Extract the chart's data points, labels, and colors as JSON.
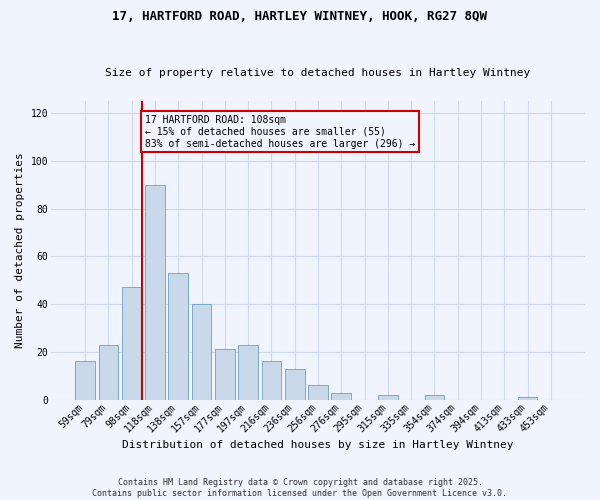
{
  "title_line1": "17, HARTFORD ROAD, HARTLEY WINTNEY, HOOK, RG27 8QW",
  "title_line2": "Size of property relative to detached houses in Hartley Wintney",
  "xlabel": "Distribution of detached houses by size in Hartley Wintney",
  "ylabel": "Number of detached properties",
  "bar_labels": [
    "59sqm",
    "79sqm",
    "98sqm",
    "118sqm",
    "138sqm",
    "157sqm",
    "177sqm",
    "197sqm",
    "216sqm",
    "236sqm",
    "256sqm",
    "276sqm",
    "295sqm",
    "315sqm",
    "335sqm",
    "354sqm",
    "374sqm",
    "394sqm",
    "413sqm",
    "433sqm",
    "453sqm"
  ],
  "bar_values": [
    16,
    23,
    47,
    90,
    53,
    40,
    21,
    23,
    16,
    13,
    6,
    3,
    0,
    2,
    0,
    2,
    0,
    0,
    0,
    1,
    0
  ],
  "bar_color": "#c9d9ea",
  "bar_edge_color": "#7aaac8",
  "ylim": [
    0,
    125
  ],
  "yticks": [
    0,
    20,
    40,
    60,
    80,
    100,
    120
  ],
  "marker_label": "17 HARTFORD ROAD: 108sqm",
  "marker_pct_smaller": "15% of detached houses are smaller (55)",
  "marker_pct_larger": "83% of semi-detached houses are larger (296)",
  "footer_line1": "Contains HM Land Registry data © Crown copyright and database right 2025.",
  "footer_line2": "Contains public sector information licensed under the Open Government Licence v3.0.",
  "bg_color": "#f0f4ff",
  "grid_color": "#d0d8ec",
  "title_fontsize": 9,
  "subtitle_fontsize": 8,
  "ylabel_fontsize": 8,
  "xlabel_fontsize": 8,
  "tick_fontsize": 7,
  "annot_fontsize": 7,
  "footer_fontsize": 6
}
